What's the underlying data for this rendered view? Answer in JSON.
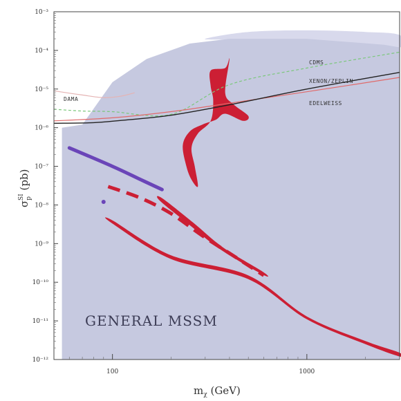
{
  "chart_data": {
    "type": "area",
    "title": "",
    "xlabel": "m_χ (GeV)",
    "ylabel": "σ_p^SI (pb)",
    "xscale": "log",
    "yscale": "log",
    "xlim": [
      50,
      3000
    ],
    "ylim": [
      1e-12,
      0.001
    ],
    "x_ticks": [
      {
        "value": 100,
        "label": "100"
      },
      {
        "value": 1000,
        "label": "1000"
      }
    ],
    "y_ticks": [
      {
        "value": 0.001,
        "label": "10⁻³"
      },
      {
        "value": 0.0001,
        "label": "10⁻⁴"
      },
      {
        "value": 1e-05,
        "label": "10⁻⁵"
      },
      {
        "value": 1e-06,
        "label": "10⁻⁶"
      },
      {
        "value": 1e-07,
        "label": "10⁻⁷"
      },
      {
        "value": 1e-08,
        "label": "10⁻⁸"
      },
      {
        "value": 1e-09,
        "label": "10⁻⁹"
      },
      {
        "value": 1e-10,
        "label": "10⁻¹⁰"
      },
      {
        "value": 1e-11,
        "label": "10⁻¹¹"
      },
      {
        "value": 1e-12,
        "label": "10⁻¹²"
      }
    ],
    "grid": false,
    "region_label": "GENERAL MSSM",
    "colors": {
      "general_region": "#c6c9e0",
      "upper_region": "#d8d9ec",
      "red_regions": "#cc1f34",
      "purple_band": "#6a45b8",
      "cdms": "#7ac87a",
      "xenon": "#222222",
      "edelweiss": "#e06a6a",
      "dama": "#e5b3b3"
    },
    "limit_curves": [
      {
        "name": "CDMS",
        "color": "#7ac87a",
        "style": "dashed",
        "points": [
          [
            50,
            3e-06
          ],
          [
            70,
            2.7e-06
          ],
          [
            100,
            2.6e-06
          ],
          [
            200,
            2.2e-06
          ],
          [
            400,
            1.3e-05
          ],
          [
            1000,
            3.5e-05
          ],
          [
            3000,
            9e-05
          ]
        ]
      },
      {
        "name": "XENON/ZEPLIN",
        "color": "#222222",
        "style": "solid",
        "points": [
          [
            50,
            1.3e-06
          ],
          [
            80,
            1.35e-06
          ],
          [
            120,
            1.6e-06
          ],
          [
            200,
            2.1e-06
          ],
          [
            400,
            3.9e-06
          ],
          [
            1000,
            1e-05
          ],
          [
            3000,
            2.7e-05
          ]
        ]
      },
      {
        "name": "EDELWEISS",
        "color": "#e06a6a",
        "style": "solid",
        "points": [
          [
            50,
            1.5e-06
          ],
          [
            100,
            1.8e-06
          ],
          [
            200,
            2.6e-06
          ],
          [
            400,
            4.3e-06
          ],
          [
            1000,
            8.5e-06
          ],
          [
            3000,
            2e-05
          ]
        ]
      },
      {
        "name": "DAMA",
        "color": "#e5b3b3",
        "style": "solid",
        "points": [
          [
            50,
            9e-06
          ],
          [
            70,
            7e-06
          ],
          [
            90,
            6e-06
          ],
          [
            110,
            6.5e-06
          ],
          [
            130,
            8e-06
          ]
        ]
      }
    ],
    "general_region": [
      [
        55,
        1e-06
      ],
      [
        70,
        1.2e-06
      ],
      [
        100,
        1.5e-05
      ],
      [
        150,
        6e-05
      ],
      [
        250,
        0.00015
      ],
      [
        400,
        0.0002
      ],
      [
        1000,
        0.0002
      ],
      [
        2500,
        0.00014
      ],
      [
        3000,
        0.00012
      ],
      [
        3000,
        1e-12
      ],
      [
        55,
        1e-12
      ]
    ],
    "upper_region": [
      [
        300,
        0.0002
      ],
      [
        500,
        0.0003
      ],
      [
        1000,
        0.00033
      ],
      [
        2000,
        0.0003
      ],
      [
        3000,
        0.00025
      ],
      [
        3000,
        0.00012
      ],
      [
        1500,
        0.00015
      ],
      [
        700,
        0.00018
      ],
      [
        400,
        0.00019
      ]
    ],
    "red_bands": [
      {
        "name": "upper-hook",
        "points": [
          [
            320,
            3e-05
          ],
          [
            380,
            3.5e-05
          ],
          [
            400,
            6e-05
          ],
          [
            380,
            8e-06
          ],
          [
            420,
            4e-06
          ],
          [
            500,
            2e-06
          ],
          [
            470,
            1.5e-06
          ],
          [
            380,
            2.3e-06
          ],
          [
            340,
            1.6e-06
          ],
          [
            290,
            1.2e-06
          ],
          [
            250,
            8e-07
          ],
          [
            230,
            3.5e-07
          ],
          [
            240,
            1e-07
          ],
          [
            255,
            4.5e-08
          ],
          [
            275,
            3e-08
          ],
          [
            265,
            1e-07
          ],
          [
            255,
            3e-07
          ],
          [
            275,
            7e-07
          ],
          [
            320,
            1.5e-06
          ],
          [
            330,
            5e-06
          ],
          [
            320,
            1.2e-05
          ]
        ]
      },
      {
        "name": "long-lower",
        "points": [
          [
            100,
            4e-09
          ],
          [
            200,
            5e-10
          ],
          [
            500,
            1.5e-10
          ],
          [
            1000,
            1.3e-11
          ],
          [
            2000,
            3e-12
          ],
          [
            3000,
            1.5e-12
          ],
          [
            3000,
            1.2e-12
          ],
          [
            2000,
            2.5e-12
          ],
          [
            1000,
            1.1e-11
          ],
          [
            500,
            1.2e-10
          ],
          [
            200,
            4e-10
          ],
          [
            100,
            3.3e-09
          ]
        ]
      },
      {
        "name": "mid-band",
        "points": [
          [
            180,
            1.5e-08
          ],
          [
            260,
            3.5e-09
          ],
          [
            370,
            8e-10
          ],
          [
            600,
            1.8e-10
          ],
          [
            590,
            1.6e-10
          ],
          [
            360,
            7e-10
          ],
          [
            250,
            3e-09
          ],
          [
            175,
            1.3e-08
          ]
        ]
      }
    ],
    "dashed_red_band": {
      "points": [
        [
          95,
          3e-08
        ],
        [
          140,
          1.5e-08
        ],
        [
          200,
          6e-09
        ],
        [
          290,
          1.6e-09
        ],
        [
          420,
          4.8e-10
        ],
        [
          600,
          1.5e-10
        ]
      ]
    },
    "purple_band": {
      "points": [
        [
          60,
          3e-07
        ],
        [
          100,
          1e-07
        ],
        [
          140,
          4.5e-08
        ],
        [
          180,
          2.5e-08
        ]
      ]
    },
    "purple_dot": {
      "x": 90,
      "y": 1.2e-08
    }
  }
}
